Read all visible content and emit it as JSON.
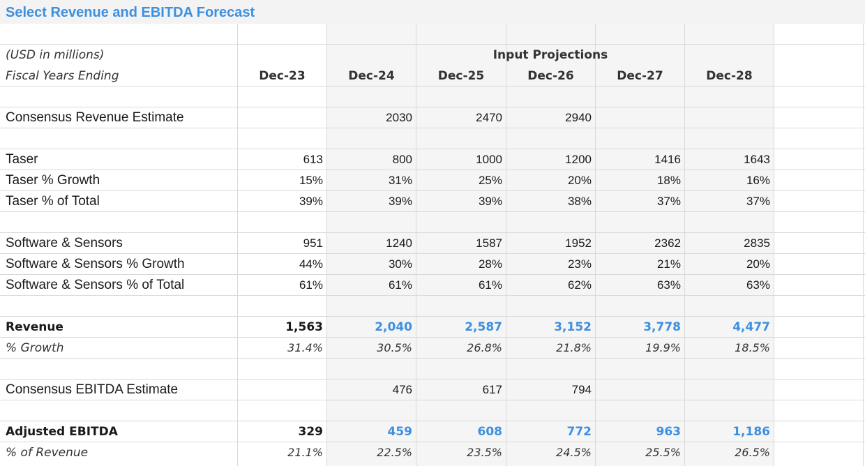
{
  "title": "Select Revenue and EBITDA Forecast",
  "header": {
    "units": "(USD in millions)",
    "fiscal_label": "Fiscal Years Ending",
    "projections_label": "Input Projections",
    "years": [
      "Dec-23",
      "Dec-24",
      "Dec-25",
      "Dec-26",
      "Dec-27",
      "Dec-28"
    ]
  },
  "rows": {
    "consensus_revenue": {
      "label": "Consensus Revenue Estimate",
      "values": [
        "",
        "2030",
        "2470",
        "2940",
        "",
        ""
      ]
    },
    "taser": {
      "label": "Taser",
      "values": [
        "613",
        "800",
        "1000",
        "1200",
        "1416",
        "1643"
      ]
    },
    "taser_growth": {
      "label": "Taser % Growth",
      "values": [
        "15%",
        "31%",
        "25%",
        "20%",
        "18%",
        "16%"
      ]
    },
    "taser_total": {
      "label": "Taser % of Total",
      "values": [
        "39%",
        "39%",
        "39%",
        "38%",
        "37%",
        "37%"
      ]
    },
    "software": {
      "label": "Software & Sensors",
      "values": [
        "951",
        "1240",
        "1587",
        "1952",
        "2362",
        "2835"
      ]
    },
    "software_growth": {
      "label": "Software & Sensors % Growth",
      "values": [
        "44%",
        "30%",
        "28%",
        "23%",
        "21%",
        "20%"
      ]
    },
    "software_total": {
      "label": "Software & Sensors % of Total",
      "values": [
        "61%",
        "61%",
        "61%",
        "62%",
        "63%",
        "63%"
      ]
    },
    "revenue": {
      "label": "Revenue",
      "values": [
        "1,563",
        "2,040",
        "2,587",
        "3,152",
        "3,778",
        "4,477"
      ]
    },
    "revenue_growth": {
      "label": "% Growth",
      "values": [
        "31.4%",
        "30.5%",
        "26.8%",
        "21.8%",
        "19.9%",
        "18.5%"
      ]
    },
    "consensus_ebitda": {
      "label": "Consensus EBITDA Estimate",
      "values": [
        "",
        "476",
        "617",
        "794",
        "",
        ""
      ]
    },
    "adj_ebitda": {
      "label": "Adjusted EBITDA",
      "values": [
        "329",
        "459",
        "608",
        "772",
        "963",
        "1,186"
      ]
    },
    "ebitda_margin": {
      "label": "% of Revenue",
      "values": [
        "21.1%",
        "22.5%",
        "23.5%",
        "24.5%",
        "25.5%",
        "26.5%"
      ]
    }
  },
  "colors": {
    "accent_blue": "#3d8fe0",
    "grid": "#d9d9d9",
    "shade": "#f5f5f5"
  }
}
